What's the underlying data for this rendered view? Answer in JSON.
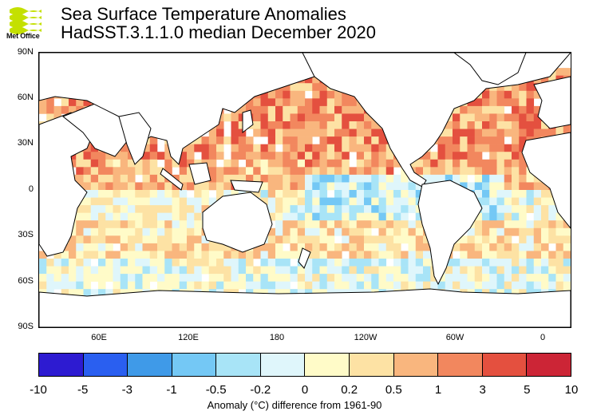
{
  "logo": {
    "text": "Met Office",
    "icon": "met-office-wave-icon"
  },
  "title": "Sea Surface Temperature Anomalies",
  "subtitle": "HadSST.3.1.1.0 median December 2020",
  "axes": {
    "lat_labels": [
      "90N",
      "60N",
      "30N",
      "0",
      "30S",
      "60S",
      "90S"
    ],
    "lon_labels": [
      "60E",
      "120E",
      "180",
      "120W",
      "60W",
      "0"
    ]
  },
  "colorbar": {
    "ticks": [
      "-10",
      "-5",
      "-3",
      "-1",
      "-0.5",
      "-0.2",
      "0",
      "0.2",
      "0.5",
      "1",
      "3",
      "5",
      "10"
    ],
    "colors": [
      "#2d1bd1",
      "#2a5ff0",
      "#3f9ae8",
      "#74c8f5",
      "#a8e4f7",
      "#dff6fb",
      "#fffbc8",
      "#fde2a4",
      "#f9b67e",
      "#f2875e",
      "#e4503f",
      "#cc2536",
      "#99081e"
    ],
    "label": "Anomaly (°C) difference from 1961-90"
  },
  "map_colors": {
    "land": "#ffffff",
    "coast": "#000000",
    "missing": "#ffffff"
  }
}
